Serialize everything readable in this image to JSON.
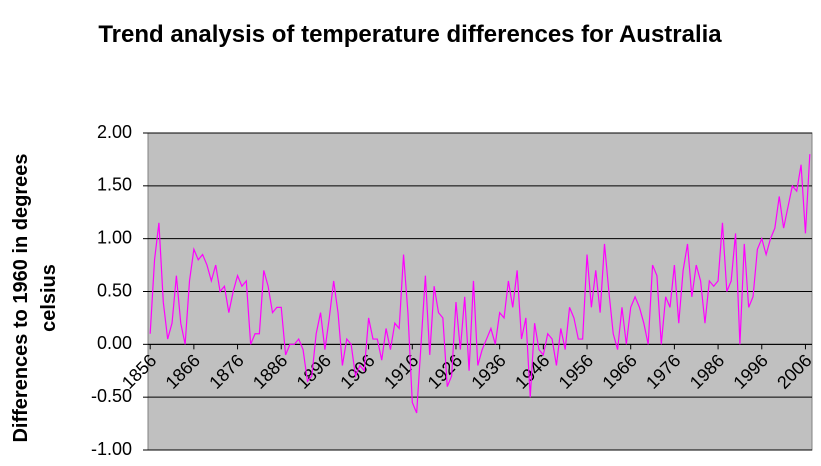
{
  "chart_data": {
    "type": "line",
    "title": "Trend analysis of temperature differences for Australia",
    "y_label": "Differences to 1960 in degrees celsius",
    "color": "#ff00ff",
    "plot_background": "#c0c0c0",
    "grid": true,
    "ylim": [
      -1,
      2
    ],
    "yticks": [
      {
        "value": -1,
        "label": "-1.00"
      },
      {
        "value": -0.5,
        "label": "-0.50"
      },
      {
        "value": 0,
        "label": "0.00"
      },
      {
        "value": 0.5,
        "label": "0.50"
      },
      {
        "value": 1,
        "label": "1.00"
      },
      {
        "value": 1.5,
        "label": "1.50"
      },
      {
        "value": 2,
        "label": "2.00"
      }
    ],
    "categories": [
      "1856",
      null,
      null,
      null,
      null,
      null,
      null,
      null,
      null,
      null,
      "1866",
      null,
      null,
      null,
      null,
      null,
      null,
      null,
      null,
      null,
      "1876",
      null,
      null,
      null,
      null,
      null,
      null,
      null,
      null,
      null,
      "1886",
      null,
      null,
      null,
      null,
      null,
      null,
      null,
      null,
      null,
      "1896",
      null,
      null,
      null,
      null,
      null,
      null,
      null,
      null,
      null,
      "1906",
      null,
      null,
      null,
      null,
      null,
      null,
      null,
      null,
      null,
      "1916",
      null,
      null,
      null,
      null,
      null,
      null,
      null,
      null,
      null,
      "1926",
      null,
      null,
      null,
      null,
      null,
      null,
      null,
      null,
      null,
      "1936",
      null,
      null,
      null,
      null,
      null,
      null,
      null,
      null,
      null,
      "1946",
      null,
      null,
      null,
      null,
      null,
      null,
      null,
      null,
      null,
      "1956",
      null,
      null,
      null,
      null,
      null,
      null,
      null,
      null,
      null,
      "1966",
      null,
      null,
      null,
      null,
      null,
      null,
      null,
      null,
      null,
      "1976",
      null,
      null,
      null,
      null,
      null,
      null,
      null,
      null,
      null,
      "1986",
      null,
      null,
      null,
      null,
      null,
      null,
      null,
      null,
      null,
      "1996",
      null,
      null,
      null,
      null,
      null,
      null,
      null,
      null,
      null,
      "2006",
      null
    ],
    "values": [
      0.1,
      0.8,
      1.15,
      0.4,
      0.05,
      0.2,
      0.65,
      0.2,
      0.0,
      0.6,
      0.9,
      0.8,
      0.85,
      0.75,
      0.6,
      0.75,
      0.5,
      0.55,
      0.3,
      0.5,
      0.65,
      0.55,
      0.6,
      0.0,
      0.1,
      0.1,
      0.7,
      0.55,
      0.3,
      0.35,
      0.35,
      -0.1,
      0.0,
      0.0,
      0.05,
      -0.05,
      -0.35,
      -0.3,
      0.1,
      0.3,
      -0.05,
      0.25,
      0.6,
      0.3,
      -0.2,
      0.05,
      0.0,
      -0.3,
      -0.2,
      -0.25,
      0.25,
      0.05,
      0.05,
      -0.15,
      0.15,
      -0.05,
      0.2,
      0.15,
      0.85,
      0.3,
      -0.55,
      -0.65,
      0.0,
      0.65,
      -0.1,
      0.55,
      0.3,
      0.25,
      -0.4,
      -0.3,
      0.4,
      -0.05,
      0.45,
      -0.25,
      0.6,
      -0.2,
      -0.05,
      0.05,
      0.15,
      0.0,
      0.3,
      0.25,
      0.6,
      0.35,
      0.7,
      0.05,
      0.25,
      -0.5,
      0.2,
      -0.05,
      -0.1,
      0.1,
      0.05,
      -0.2,
      0.15,
      -0.05,
      0.35,
      0.25,
      0.05,
      0.05,
      0.85,
      0.35,
      0.7,
      0.3,
      0.95,
      0.5,
      0.1,
      -0.05,
      0.35,
      0.0,
      0.35,
      0.45,
      0.35,
      0.2,
      0.0,
      0.75,
      0.65,
      0.0,
      0.45,
      0.35,
      0.75,
      0.2,
      0.7,
      0.95,
      0.45,
      0.75,
      0.6,
      0.2,
      0.6,
      0.55,
      0.6,
      1.15,
      0.5,
      0.6,
      1.05,
      0.0,
      0.95,
      0.35,
      0.45,
      0.9,
      1.0,
      0.85,
      1.0,
      1.1,
      1.4,
      1.1,
      1.3,
      1.5,
      1.45,
      1.7,
      1.05,
      1.8
    ]
  }
}
